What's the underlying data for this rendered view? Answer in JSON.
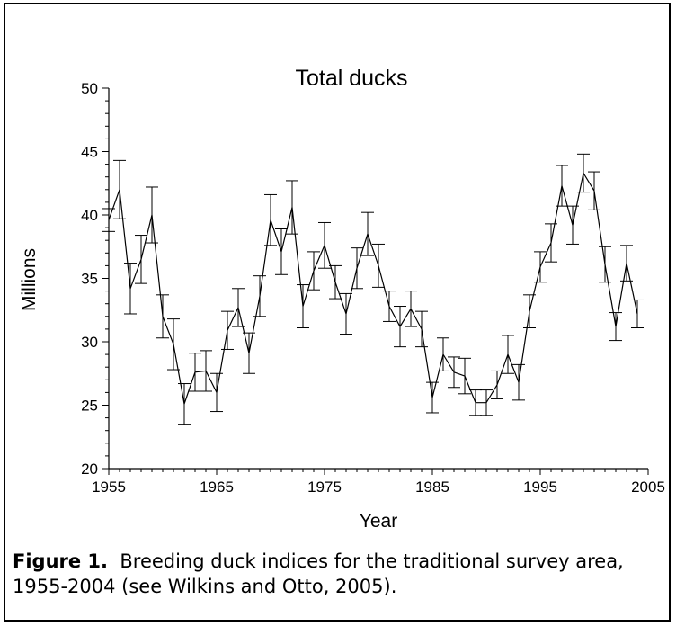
{
  "caption": {
    "label": "Figure 1.",
    "text": "Breeding duck indices for the traditional survey area, 1955-2004 (see Wilkins and Otto, 2005)."
  },
  "chart_data": {
    "type": "line",
    "title": "Total ducks",
    "xlabel": "Year",
    "ylabel": "Millions",
    "xlim": [
      1955,
      2005
    ],
    "ylim": [
      20,
      50
    ],
    "xticks": [
      1955,
      1965,
      1975,
      1985,
      1995,
      2005
    ],
    "yticks": [
      20,
      25,
      30,
      35,
      40,
      45,
      50
    ],
    "grid": false,
    "error_bars": true,
    "x": [
      1955,
      1956,
      1957,
      1958,
      1959,
      1960,
      1961,
      1962,
      1963,
      1964,
      1965,
      1966,
      1967,
      1968,
      1969,
      1970,
      1971,
      1972,
      1973,
      1974,
      1975,
      1976,
      1977,
      1978,
      1979,
      1980,
      1981,
      1982,
      1983,
      1984,
      1985,
      1986,
      1987,
      1988,
      1989,
      1990,
      1991,
      1992,
      1993,
      1994,
      1995,
      1996,
      1997,
      1998,
      1999,
      2000,
      2001,
      2002,
      2003,
      2004
    ],
    "y": [
      39.6,
      42.0,
      34.2,
      36.5,
      40.0,
      32.0,
      29.8,
      25.1,
      27.6,
      27.7,
      26.0,
      30.9,
      32.7,
      29.1,
      33.6,
      39.6,
      37.1,
      40.6,
      32.8,
      35.6,
      37.6,
      34.7,
      32.2,
      35.8,
      38.5,
      36.0,
      32.8,
      31.2,
      32.6,
      31.0,
      25.6,
      29.0,
      27.6,
      27.3,
      25.2,
      25.2,
      26.6,
      29.0,
      26.8,
      32.4,
      35.9,
      37.8,
      42.3,
      39.2,
      43.3,
      41.9,
      36.1,
      31.2,
      36.2,
      32.2
    ],
    "err": [
      0.9,
      2.3,
      2.0,
      1.9,
      2.2,
      1.7,
      2.0,
      1.6,
      1.5,
      1.6,
      1.5,
      1.5,
      1.5,
      1.6,
      1.6,
      2.0,
      1.8,
      2.1,
      1.7,
      1.5,
      1.8,
      1.3,
      1.6,
      1.6,
      1.7,
      1.7,
      1.2,
      1.6,
      1.4,
      1.4,
      1.2,
      1.3,
      1.2,
      1.4,
      1.0,
      1.0,
      1.1,
      1.5,
      1.4,
      1.3,
      1.2,
      1.5,
      1.6,
      1.5,
      1.5,
      1.5,
      1.4,
      1.1,
      1.4,
      1.1
    ]
  }
}
